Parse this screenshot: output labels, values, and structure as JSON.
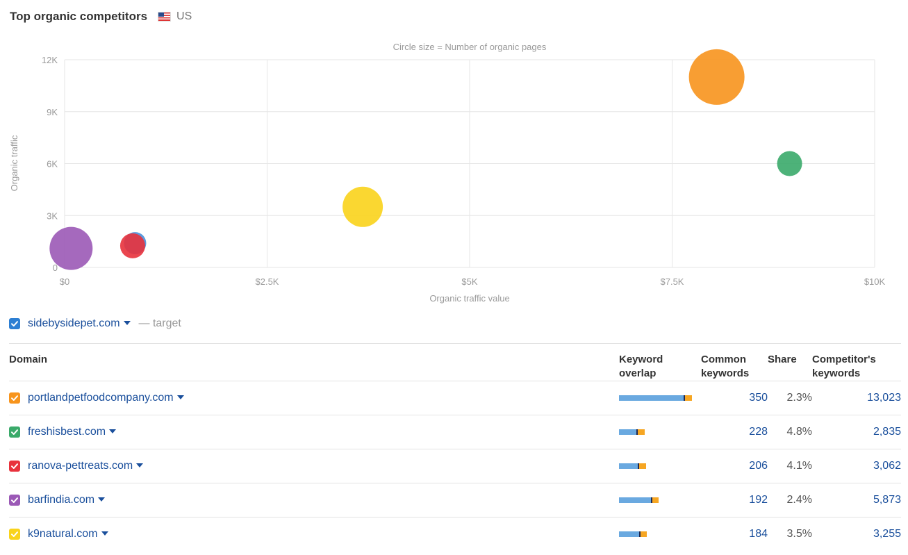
{
  "header": {
    "title": "Top organic competitors",
    "country": "US"
  },
  "chart_data": {
    "type": "scatter",
    "subtitle": "Circle size = Number of organic pages",
    "xlabel": "Organic traffic value",
    "ylabel": "Organic traffic",
    "xlim": [
      0,
      10000
    ],
    "ylim": [
      0,
      12000
    ],
    "x_ticks": [
      "$0",
      "$2.5K",
      "$5K",
      "$7.5K",
      "$10K"
    ],
    "y_ticks": [
      "0",
      "3K",
      "6K",
      "9K",
      "12K"
    ],
    "grid": true,
    "points": [
      {
        "domain": "portlandpetfoodcompany.com",
        "x": 8050,
        "y": 11000,
        "size": 40,
        "color": "#f7941d"
      },
      {
        "domain": "freshisbest.com",
        "x": 8950,
        "y": 6000,
        "size": 18,
        "color": "#3aaa6a"
      },
      {
        "domain": "k9natural.com",
        "x": 3680,
        "y": 3500,
        "size": 29,
        "color": "#f9d31b"
      },
      {
        "domain": "sidebysidepet.com",
        "x": 870,
        "y": 1400,
        "size": 16,
        "color": "#4a90d9"
      },
      {
        "domain": "ranova-pettreats.com",
        "x": 840,
        "y": 1250,
        "size": 18,
        "color": "#e8323c"
      },
      {
        "domain": "barfindia.com",
        "x": 80,
        "y": 1100,
        "size": 31,
        "color": "#9b59b6"
      }
    ]
  },
  "target": {
    "domain": "sidebysidepet.com",
    "note": "— target",
    "color": "#2d7fd3"
  },
  "table": {
    "headers": {
      "domain": "Domain",
      "overlap_1": "Keyword",
      "overlap_2": "overlap",
      "common_1": "Common",
      "common_2": "keywords",
      "share": "Share",
      "competitor_1": "Competitor's",
      "competitor_2": "keywords"
    },
    "rows": [
      {
        "domain": "portlandpetfoodcompany.com",
        "color": "#f7941d",
        "overlap_common": 350,
        "overlap_unique": 13023,
        "common": "350",
        "share": "2.3%",
        "competitor": "13,023"
      },
      {
        "domain": "freshisbest.com",
        "color": "#3aaa6a",
        "overlap_common": 228,
        "overlap_unique": 2835,
        "common": "228",
        "share": "4.8%",
        "competitor": "2,835"
      },
      {
        "domain": "ranova-pettreats.com",
        "color": "#e8323c",
        "overlap_common": 206,
        "overlap_unique": 3062,
        "common": "206",
        "share": "4.1%",
        "competitor": "3,062"
      },
      {
        "domain": "barfindia.com",
        "color": "#9b59b6",
        "overlap_common": 192,
        "overlap_unique": 5873,
        "common": "192",
        "share": "2.4%",
        "competitor": "5,873"
      },
      {
        "domain": "k9natural.com",
        "color": "#f9d31b",
        "overlap_common": 184,
        "overlap_unique": 3255,
        "common": "184",
        "share": "3.5%",
        "competitor": "3,255"
      }
    ]
  }
}
